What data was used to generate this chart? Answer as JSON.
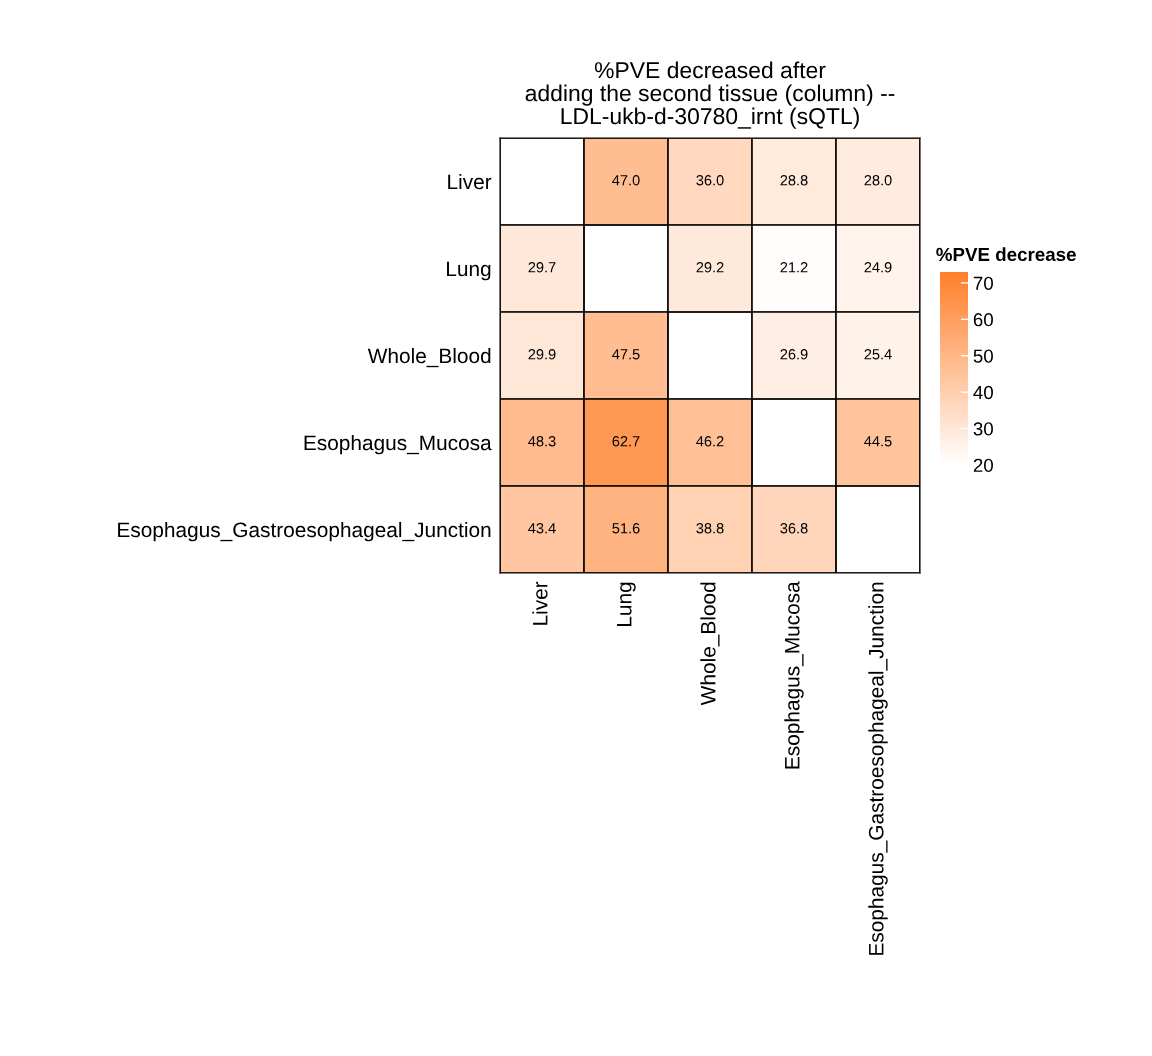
{
  "chart_data": {
    "type": "heatmap",
    "title": "%PVE decreased after\nadding the second tissue (column) --\nLDL-ukb-d-30780_irnt (sQTL)",
    "categories": [
      "Liver",
      "Lung",
      "Whole_Blood",
      "Esophagus_Mucosa",
      "Esophagus_Gastroesophageal_Junction"
    ],
    "y_categories": [
      "Liver",
      "Lung",
      "Whole_Blood",
      "Esophagus_Mucosa",
      "Esophagus_Gastroesophageal_Junction"
    ],
    "cells": [
      [
        null,
        47.0,
        36.0,
        28.8,
        28.0
      ],
      [
        29.7,
        null,
        29.2,
        21.2,
        24.9
      ],
      [
        29.9,
        47.5,
        null,
        26.9,
        25.4
      ],
      [
        48.3,
        62.7,
        46.2,
        null,
        44.5
      ],
      [
        43.4,
        51.6,
        38.8,
        36.8,
        null
      ]
    ],
    "cell_labels": [
      [
        null,
        "47.0",
        "36.0",
        "28.8",
        "28.0"
      ],
      [
        "29.7",
        null,
        "29.2",
        "21.2",
        "24.9"
      ],
      [
        "29.9",
        "47.5",
        null,
        "26.9",
        "25.4"
      ],
      [
        "48.3",
        "62.7",
        "46.2",
        null,
        "44.5"
      ],
      [
        "43.4",
        "51.6",
        "38.8",
        "36.8",
        null
      ]
    ],
    "clim": [
      20,
      73
    ],
    "cticks": [
      20,
      30,
      40,
      50,
      60,
      70
    ],
    "clabel": "%PVE decrease",
    "data_labels": true,
    "grid": true
  }
}
